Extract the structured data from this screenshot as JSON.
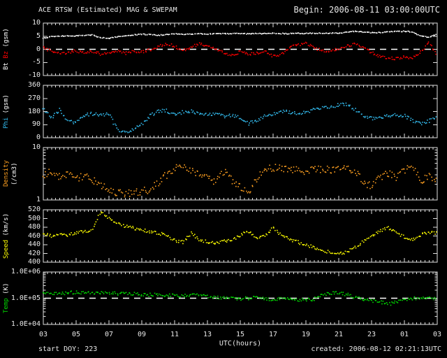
{
  "header": {
    "title": "ACE RTSW (Estimated) MAG & SWEPAM",
    "begin": "Begin: 2006-08-11 03:00:00UTC"
  },
  "footer": {
    "start_doy": "start DOY: 223",
    "created": "created: 2006-08-12 02:21:13UTC"
  },
  "colors": {
    "background": "#000000",
    "frame": "#e0e0e0",
    "text": "#e8e8e8",
    "bt": "#ffffff",
    "bz": "#ff0000",
    "phi": "#33bbee",
    "density": "#ffa020",
    "speed": "#ffff00",
    "temp": "#00dd00"
  },
  "chart_data": {
    "type": "scatter",
    "x_axis": {
      "title": "UTC(hours)",
      "hours_start": 3,
      "hours_end": 27,
      "step": 0.5,
      "tick_labels": [
        "03",
        "05",
        "07",
        "09",
        "11",
        "13",
        "15",
        "17",
        "19",
        "21",
        "23",
        "01",
        "03"
      ]
    },
    "panels": [
      {
        "id": "mag",
        "label_parts": [
          {
            "text": "Bt ",
            "color": "#ffffff"
          },
          {
            "text": "Bz",
            "color": "#ff0000"
          },
          {
            "text": " (gsm)",
            "color": "#ffffff"
          }
        ],
        "scale": "linear",
        "ymin": -10,
        "ymax": 10,
        "yticks": [
          10,
          5,
          0,
          -5,
          -10
        ],
        "ytick_labels": [
          "10",
          "5",
          "0",
          "-5",
          "-10"
        ],
        "dashline": 0,
        "series": [
          {
            "name": "Bt",
            "color": "#ffffff",
            "jitter": 0.18,
            "values": [
              4.2,
              4.8,
              5.0,
              5.2,
              5.1,
              5.3,
              5.5,
              4.4,
              4.2,
              4.8,
              5.2,
              5.5,
              5.7,
              5.6,
              5.4,
              5.6,
              5.9,
              5.8,
              5.7,
              5.9,
              5.8,
              6.0,
              5.9,
              6.0,
              6.0,
              5.9,
              6.0,
              6.0,
              6.1,
              6.0,
              6.0,
              6.1,
              6.0,
              6.1,
              6.2,
              6.1,
              6.2,
              6.5,
              6.9,
              6.6,
              6.3,
              6.4,
              6.6,
              6.8,
              6.9,
              6.6,
              5.0,
              4.6,
              5.8
            ]
          },
          {
            "name": "Bz",
            "color": "#ff0000",
            "jitter": 0.55,
            "values": [
              0.5,
              -0.8,
              -1.8,
              -1.2,
              -0.5,
              -1.5,
              -0.8,
              -1.8,
              -1.2,
              -0.6,
              -1.5,
              -0.8,
              -1.0,
              -0.2,
              1.0,
              2.0,
              1.2,
              -0.5,
              0.8,
              2.2,
              1.0,
              0.2,
              -1.2,
              -2.2,
              -1.0,
              -2.0,
              -1.5,
              -0.8,
              -2.8,
              -1.8,
              0.5,
              1.8,
              2.2,
              0.8,
              -0.8,
              -0.5,
              0.2,
              1.2,
              2.0,
              1.0,
              -1.2,
              -2.6,
              -3.2,
              -3.6,
              -2.8,
              -3.4,
              -1.0,
              2.6,
              -2.5
            ]
          }
        ]
      },
      {
        "id": "phi",
        "label_parts": [
          {
            "text": "Phi",
            "color": "#33bbee"
          },
          {
            "text": " (gsm)",
            "color": "#ffffff"
          }
        ],
        "scale": "linear",
        "ymin": 0,
        "ymax": 360,
        "yticks": [
          360,
          270,
          180,
          90,
          0
        ],
        "ytick_labels": [
          "360",
          "270",
          "180",
          "90",
          "0"
        ],
        "series": [
          {
            "name": "Phi",
            "color": "#33bbee",
            "jitter": 12,
            "values": [
              200,
              140,
              190,
              120,
              100,
              155,
              165,
              160,
              158,
              60,
              35,
              60,
              90,
              150,
              180,
              185,
              160,
              175,
              182,
              170,
              158,
              165,
              145,
              155,
              135,
              95,
              120,
              150,
              162,
              185,
              175,
              160,
              178,
              195,
              205,
              215,
              225,
              230,
              190,
              150,
              132,
              142,
              148,
              155,
              150,
              120,
              95,
              115,
              135
            ]
          }
        ]
      },
      {
        "id": "density",
        "label_parts": [
          {
            "text": "Density",
            "color": "#ffa020"
          },
          {
            "text": " (/cm3)",
            "color": "#ffffff"
          }
        ],
        "scale": "log",
        "ymin": 1,
        "ymax": 10,
        "yticks": [
          10,
          1
        ],
        "ytick_labels": [
          "10",
          "1"
        ],
        "series": [
          {
            "name": "Density",
            "color": "#ffa020",
            "jitter": 0.16,
            "values": [
              3.0,
              3.5,
              2.8,
              3.2,
              2.6,
              3.0,
              2.4,
              2.0,
              1.6,
              1.4,
              1.3,
              1.4,
              1.5,
              1.6,
              2.2,
              3.0,
              4.0,
              4.5,
              3.8,
              3.2,
              2.6,
              2.2,
              3.5,
              2.4,
              1.8,
              1.3,
              2.5,
              3.8,
              4.2,
              4.0,
              3.8,
              4.0,
              3.6,
              3.8,
              4.0,
              3.7,
              3.9,
              4.2,
              3.4,
              2.2,
              1.8,
              2.6,
              3.2,
              2.8,
              3.5,
              4.5,
              2.0,
              3.0,
              2.5
            ]
          }
        ]
      },
      {
        "id": "speed",
        "label_parts": [
          {
            "text": "Speed",
            "color": "#ffff00"
          },
          {
            "text": " (km/s)",
            "color": "#ffffff"
          }
        ],
        "scale": "linear",
        "ymin": 400,
        "ymax": 520,
        "yticks": [
          520,
          500,
          480,
          460,
          440,
          420,
          400
        ],
        "ytick_labels": [
          "520",
          "500",
          "480",
          "460",
          "440",
          "420",
          "400"
        ],
        "series": [
          {
            "name": "Speed",
            "color": "#ffff00",
            "jitter": 3.5,
            "values": [
              465,
              460,
              466,
              462,
              468,
              470,
              472,
              518,
              500,
              490,
              482,
              478,
              474,
              470,
              466,
              462,
              450,
              446,
              466,
              452,
              446,
              444,
              448,
              452,
              462,
              470,
              455,
              460,
              478,
              462,
              452,
              446,
              440,
              434,
              428,
              422,
              420,
              423,
              434,
              448,
              458,
              472,
              478,
              468,
              458,
              452,
              462,
              470,
              466
            ]
          }
        ]
      },
      {
        "id": "temp",
        "label_parts": [
          {
            "text": "Temp",
            "color": "#00dd00"
          },
          {
            "text": " (K)",
            "color": "#ffffff"
          }
        ],
        "scale": "log",
        "ymin": 10000,
        "ymax": 1000000,
        "yticks": [
          1000000,
          100000,
          10000
        ],
        "ytick_labels": [
          "1.0E+06",
          "1.0E+05",
          "1.0E+04"
        ],
        "dashline": 100000,
        "series": [
          {
            "name": "Temp",
            "color": "#00dd00",
            "jitter": 0.15,
            "values": [
              160000,
              150000,
              155000,
              165000,
              170000,
              160000,
              150000,
              155000,
              160000,
              150000,
              145000,
              150000,
              140000,
              135000,
              140000,
              130000,
              125000,
              120000,
              130000,
              125000,
              115000,
              110000,
              105000,
              100000,
              95000,
              100000,
              105000,
              95000,
              90000,
              95000,
              100000,
              90000,
              85000,
              95000,
              130000,
              160000,
              155000,
              140000,
              110000,
              90000,
              80000,
              75000,
              60000,
              70000,
              90000,
              100000,
              95000,
              100000,
              95000
            ]
          }
        ]
      }
    ]
  }
}
